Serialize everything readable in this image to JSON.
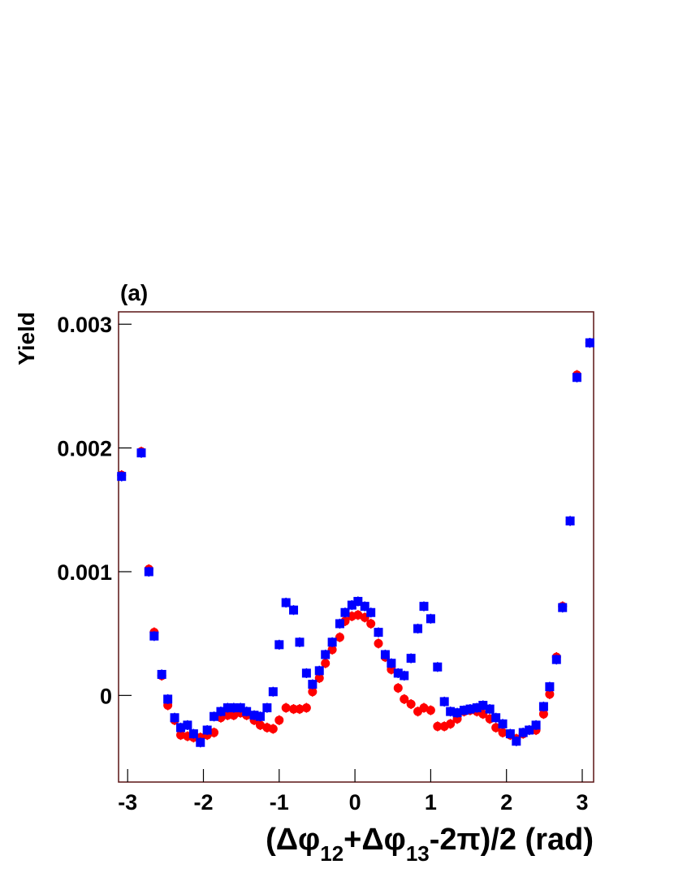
{
  "chart_data": {
    "type": "scatter",
    "annotation": "(a)",
    "y_label": "Yield",
    "x_label": [
      "(Δφ",
      "12",
      "+Δφ",
      "13",
      "-2π)/2  (rad)"
    ],
    "xlim": [
      -3.12,
      3.15
    ],
    "xticks": [
      -3,
      -2,
      -1,
      0,
      1,
      2,
      3
    ],
    "ylim": [
      -0.0007,
      0.0031
    ],
    "yticks": [
      0,
      0.001,
      0.002,
      0.003
    ],
    "frame_color": "#5a1414",
    "x": [
      -3.08,
      -2.82,
      -2.72,
      -2.65,
      -2.55,
      -2.47,
      -2.38,
      -2.3,
      -2.21,
      -2.13,
      -2.04,
      -1.95,
      -1.86,
      -1.77,
      -1.68,
      -1.6,
      -1.51,
      -1.43,
      -1.33,
      -1.25,
      -1.16,
      -1.08,
      -1.0,
      -0.91,
      -0.81,
      -0.73,
      -0.64,
      -0.56,
      -0.47,
      -0.39,
      -0.3,
      -0.2,
      -0.13,
      -0.04,
      0.04,
      0.13,
      0.21,
      0.31,
      0.4,
      0.48,
      0.57,
      0.65,
      0.74,
      0.83,
      0.91,
      1.0,
      1.09,
      1.18,
      1.26,
      1.35,
      1.44,
      1.52,
      1.61,
      1.69,
      1.78,
      1.86,
      1.95,
      2.05,
      2.13,
      2.22,
      2.3,
      2.39,
      2.49,
      2.57,
      2.66,
      2.74,
      2.84,
      2.93,
      3.1
    ],
    "series": [
      {
        "marker": "circle",
        "color": "#ff0000",
        "error": 4e-05,
        "values": [
          0.00178,
          0.00197,
          0.00102,
          0.00051,
          0.00016,
          -8e-05,
          -0.0002,
          -0.00032,
          -0.00033,
          -0.00034,
          -0.00034,
          -0.00032,
          -0.0003,
          -0.00018,
          -0.00016,
          -0.00016,
          -0.00014,
          -0.00016,
          -0.0002,
          -0.00024,
          -0.00026,
          -0.00027,
          -0.0002,
          -0.0001,
          -0.00011,
          -0.00011,
          -0.0001,
          3e-05,
          0.00014,
          0.00026,
          0.00037,
          0.00047,
          0.0006,
          0.00064,
          0.00065,
          0.00063,
          0.00058,
          0.00042,
          0.00031,
          0.00021,
          6e-05,
          -3e-05,
          -7e-05,
          -0.00013,
          -0.0001,
          -0.00012,
          -0.00025,
          -0.00025,
          -0.00023,
          -0.00019,
          -0.00013,
          -0.00012,
          -0.00013,
          -0.00015,
          -0.00019,
          -0.00026,
          -0.0003,
          -0.00032,
          -0.00035,
          -0.00031,
          -0.00028,
          -0.00028,
          -0.00015,
          1e-05,
          0.00031,
          0.00072,
          0.00141,
          0.00259,
          0.00285
        ]
      },
      {
        "marker": "square",
        "color": "#0000ff",
        "error": 4e-05,
        "values": [
          0.00177,
          0.00196,
          0.001,
          0.00048,
          0.00017,
          -3e-05,
          -0.00018,
          -0.00026,
          -0.00024,
          -0.00031,
          -0.00038,
          -0.00028,
          -0.00017,
          -0.00013,
          -0.0001,
          -0.0001,
          -0.0001,
          -0.00013,
          -0.00016,
          -0.00017,
          -0.0001,
          3e-05,
          0.00041,
          0.00075,
          0.00069,
          0.00043,
          0.00018,
          9e-05,
          0.0002,
          0.00033,
          0.00043,
          0.00058,
          0.00067,
          0.00073,
          0.00076,
          0.00072,
          0.00067,
          0.00051,
          0.00033,
          0.00026,
          0.00018,
          0.00016,
          0.0003,
          0.00054,
          0.00072,
          0.00062,
          0.00023,
          -5e-05,
          -0.00013,
          -0.00014,
          -0.00012,
          -0.00011,
          -0.0001,
          -8e-05,
          -0.00011,
          -0.00018,
          -0.00023,
          -0.00031,
          -0.00037,
          -0.0003,
          -0.00028,
          -0.00024,
          -9e-05,
          7e-05,
          0.00029,
          0.00071,
          0.00141,
          0.00257,
          0.00285
        ]
      }
    ]
  }
}
